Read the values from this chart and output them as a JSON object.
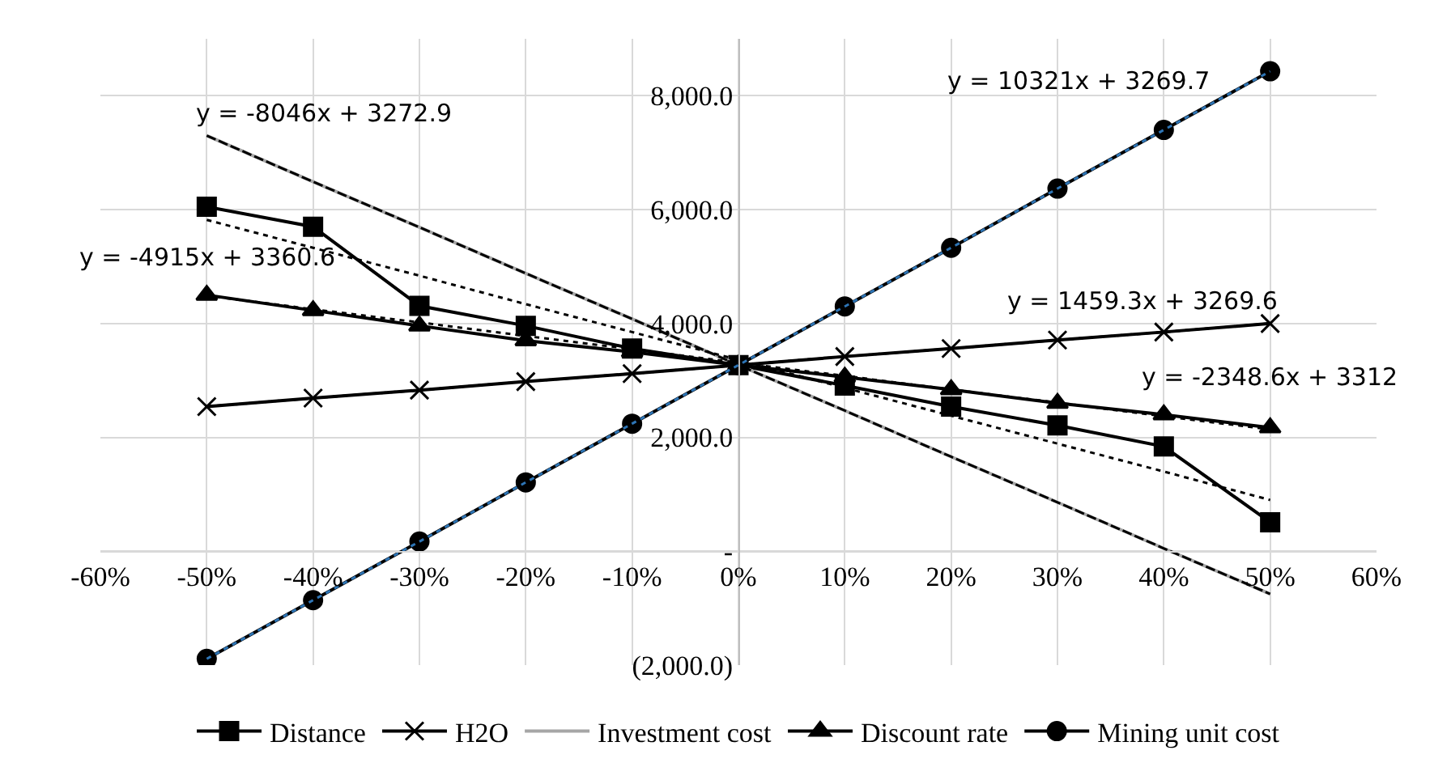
{
  "chart_data": {
    "type": "line",
    "x": [
      -0.5,
      -0.4,
      -0.3,
      -0.2,
      -0.1,
      0,
      0.1,
      0.2,
      0.3,
      0.4,
      0.5
    ],
    "series": [
      {
        "name": "Distance",
        "color": "#000000",
        "marker": "square",
        "line_style": "solid",
        "values": [
          6050,
          5700,
          4310,
          3960,
          3560,
          3270,
          2910,
          2540,
          2210,
          1840,
          510
        ]
      },
      {
        "name": "H2O",
        "color": "#000000",
        "marker": "cross",
        "line_style": "solid",
        "values": [
          2540,
          2690,
          2830,
          2980,
          3120,
          3270,
          3420,
          3560,
          3710,
          3850,
          4000
        ]
      },
      {
        "name": "Investment cost",
        "color": "#a6a6a6",
        "marker": "none",
        "line_style": "solid",
        "values": [
          7300,
          6490,
          5690,
          4880,
          4080,
          3270,
          2470,
          1660,
          860,
          50,
          -750
        ]
      },
      {
        "name": "Discount rate",
        "color": "#000000",
        "marker": "triangle",
        "line_style": "solid",
        "values": [
          4500,
          4230,
          3960,
          3700,
          3500,
          3270,
          3060,
          2840,
          2600,
          2400,
          2170
        ]
      },
      {
        "name": "Mining unit cost",
        "color": "#000000",
        "marker": "circle",
        "line_style": "solid",
        "values": [
          -1890,
          -860,
          170,
          1210,
          2240,
          3270,
          4300,
          5330,
          6370,
          7400,
          8430
        ]
      },
      {
        "type": "line",
        "color": "#000000",
        "marker": "none",
        "line_style": "dotted",
        "values": [
          5820,
          5330,
          4840,
          4340,
          3850,
          3360,
          2870,
          2380,
          1890,
          1400,
          900
        ]
      },
      {
        "type": "line",
        "color": "#000000",
        "marker": "none",
        "line_style": "dotted",
        "values": [
          2540,
          2690,
          2830,
          2980,
          3120,
          3270,
          3420,
          3560,
          3710,
          3850,
          4000
        ]
      },
      {
        "type": "line",
        "color": "#000000",
        "marker": "none",
        "line_style": "dashed",
        "values": [
          7300,
          6490,
          5690,
          4880,
          4080,
          3270,
          2470,
          1660,
          860,
          50,
          -750
        ]
      },
      {
        "type": "line",
        "color": "#000000",
        "marker": "none",
        "line_style": "dotted",
        "values": [
          4490,
          4250,
          4020,
          3780,
          3550,
          3310,
          3080,
          2840,
          2610,
          2370,
          2140
        ]
      },
      {
        "type": "line",
        "color": "#2e75b6",
        "marker": "none",
        "line_style": "dotted",
        "values": [
          -1890,
          -860,
          170,
          1210,
          2240,
          3270,
          4300,
          5330,
          6370,
          7400,
          8430
        ]
      }
    ],
    "xlim": [
      -0.6,
      0.6
    ],
    "xticks": [
      {
        "value": -0.6,
        "label": "-60%"
      },
      {
        "value": -0.5,
        "label": "-50%"
      },
      {
        "value": -0.4,
        "label": "-40%"
      },
      {
        "value": -0.3,
        "label": "-30%"
      },
      {
        "value": -0.2,
        "label": "-20%"
      },
      {
        "value": -0.1,
        "label": "-10%"
      },
      {
        "value": 0,
        "label": "0%"
      },
      {
        "value": 0.1,
        "label": "10%"
      },
      {
        "value": 0.2,
        "label": "20%"
      },
      {
        "value": 0.3,
        "label": "30%"
      },
      {
        "value": 0.4,
        "label": "40%"
      },
      {
        "value": 0.5,
        "label": "50%"
      },
      {
        "value": 0.6,
        "label": "60%"
      }
    ],
    "ylim": [
      -2000,
      9000
    ],
    "yticks": [
      {
        "value": -2000,
        "label": "(2,000.0)"
      },
      {
        "value": 0,
        "label": "-"
      },
      {
        "value": 2000,
        "label": "2,000.0"
      },
      {
        "value": 4000,
        "label": "4,000.0"
      },
      {
        "value": 6000,
        "label": "6,000.0"
      },
      {
        "value": 8000,
        "label": "8,000.0"
      }
    ],
    "grid": true,
    "legend": "bottom",
    "annotations": [
      "y = -8046x + 3272.9",
      "y = -4915x + 3360.6",
      "y = 10321x + 3269.7",
      "y = 1459.3x + 3269.6",
      "y = -2348.6x + 3312"
    ]
  }
}
